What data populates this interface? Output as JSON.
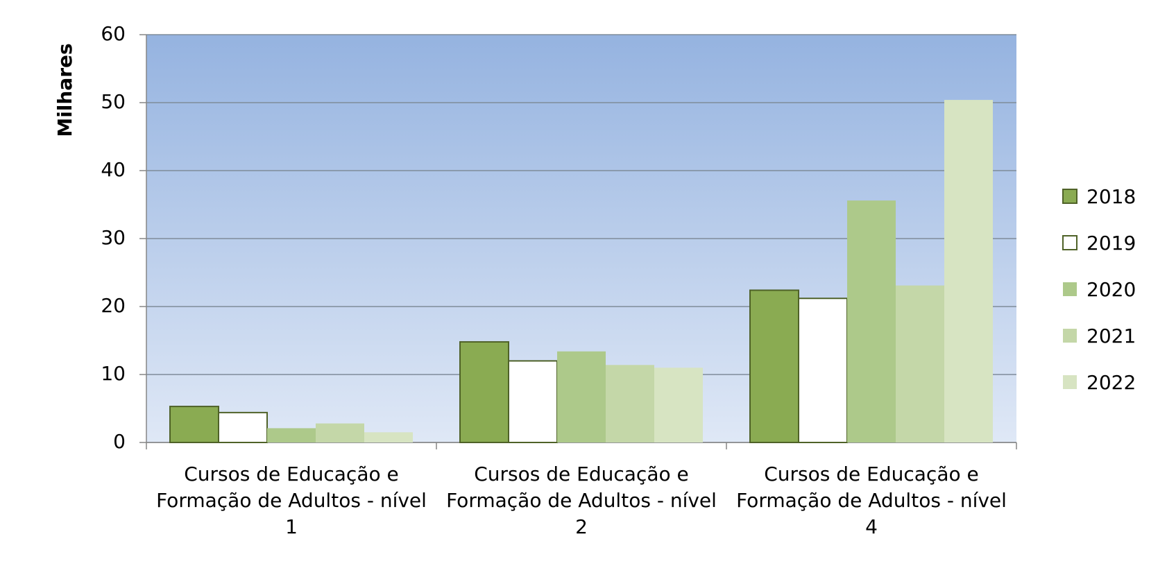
{
  "chart_data": {
    "type": "bar",
    "y_label": "Milhares",
    "categories": [
      "Cursos de Educação e Formação de Adultos - nível 1",
      "Cursos de Educação e Formação de Adultos - nível 2",
      "Cursos de Educação e Formação de Adultos - nível 4"
    ],
    "series": [
      {
        "name": "2018",
        "color": "#8aab52",
        "values": [
          5.3,
          14.8,
          22.4
        ]
      },
      {
        "name": "2019",
        "color": "#ffffff",
        "values": [
          4.4,
          12.0,
          21.2
        ]
      },
      {
        "name": "2020",
        "color": "#adc98a",
        "values": [
          2.1,
          13.4,
          35.6
        ]
      },
      {
        "name": "2021",
        "color": "#c4d7a8",
        "values": [
          2.8,
          11.4,
          23.1
        ]
      },
      {
        "name": "2022",
        "color": "#d7e4c2",
        "values": [
          1.5,
          11.0,
          50.4
        ]
      }
    ],
    "ylim": [
      0,
      60
    ],
    "yticks": [
      0,
      10,
      20,
      30,
      40,
      50,
      60
    ],
    "grid": true,
    "legend": "right"
  }
}
